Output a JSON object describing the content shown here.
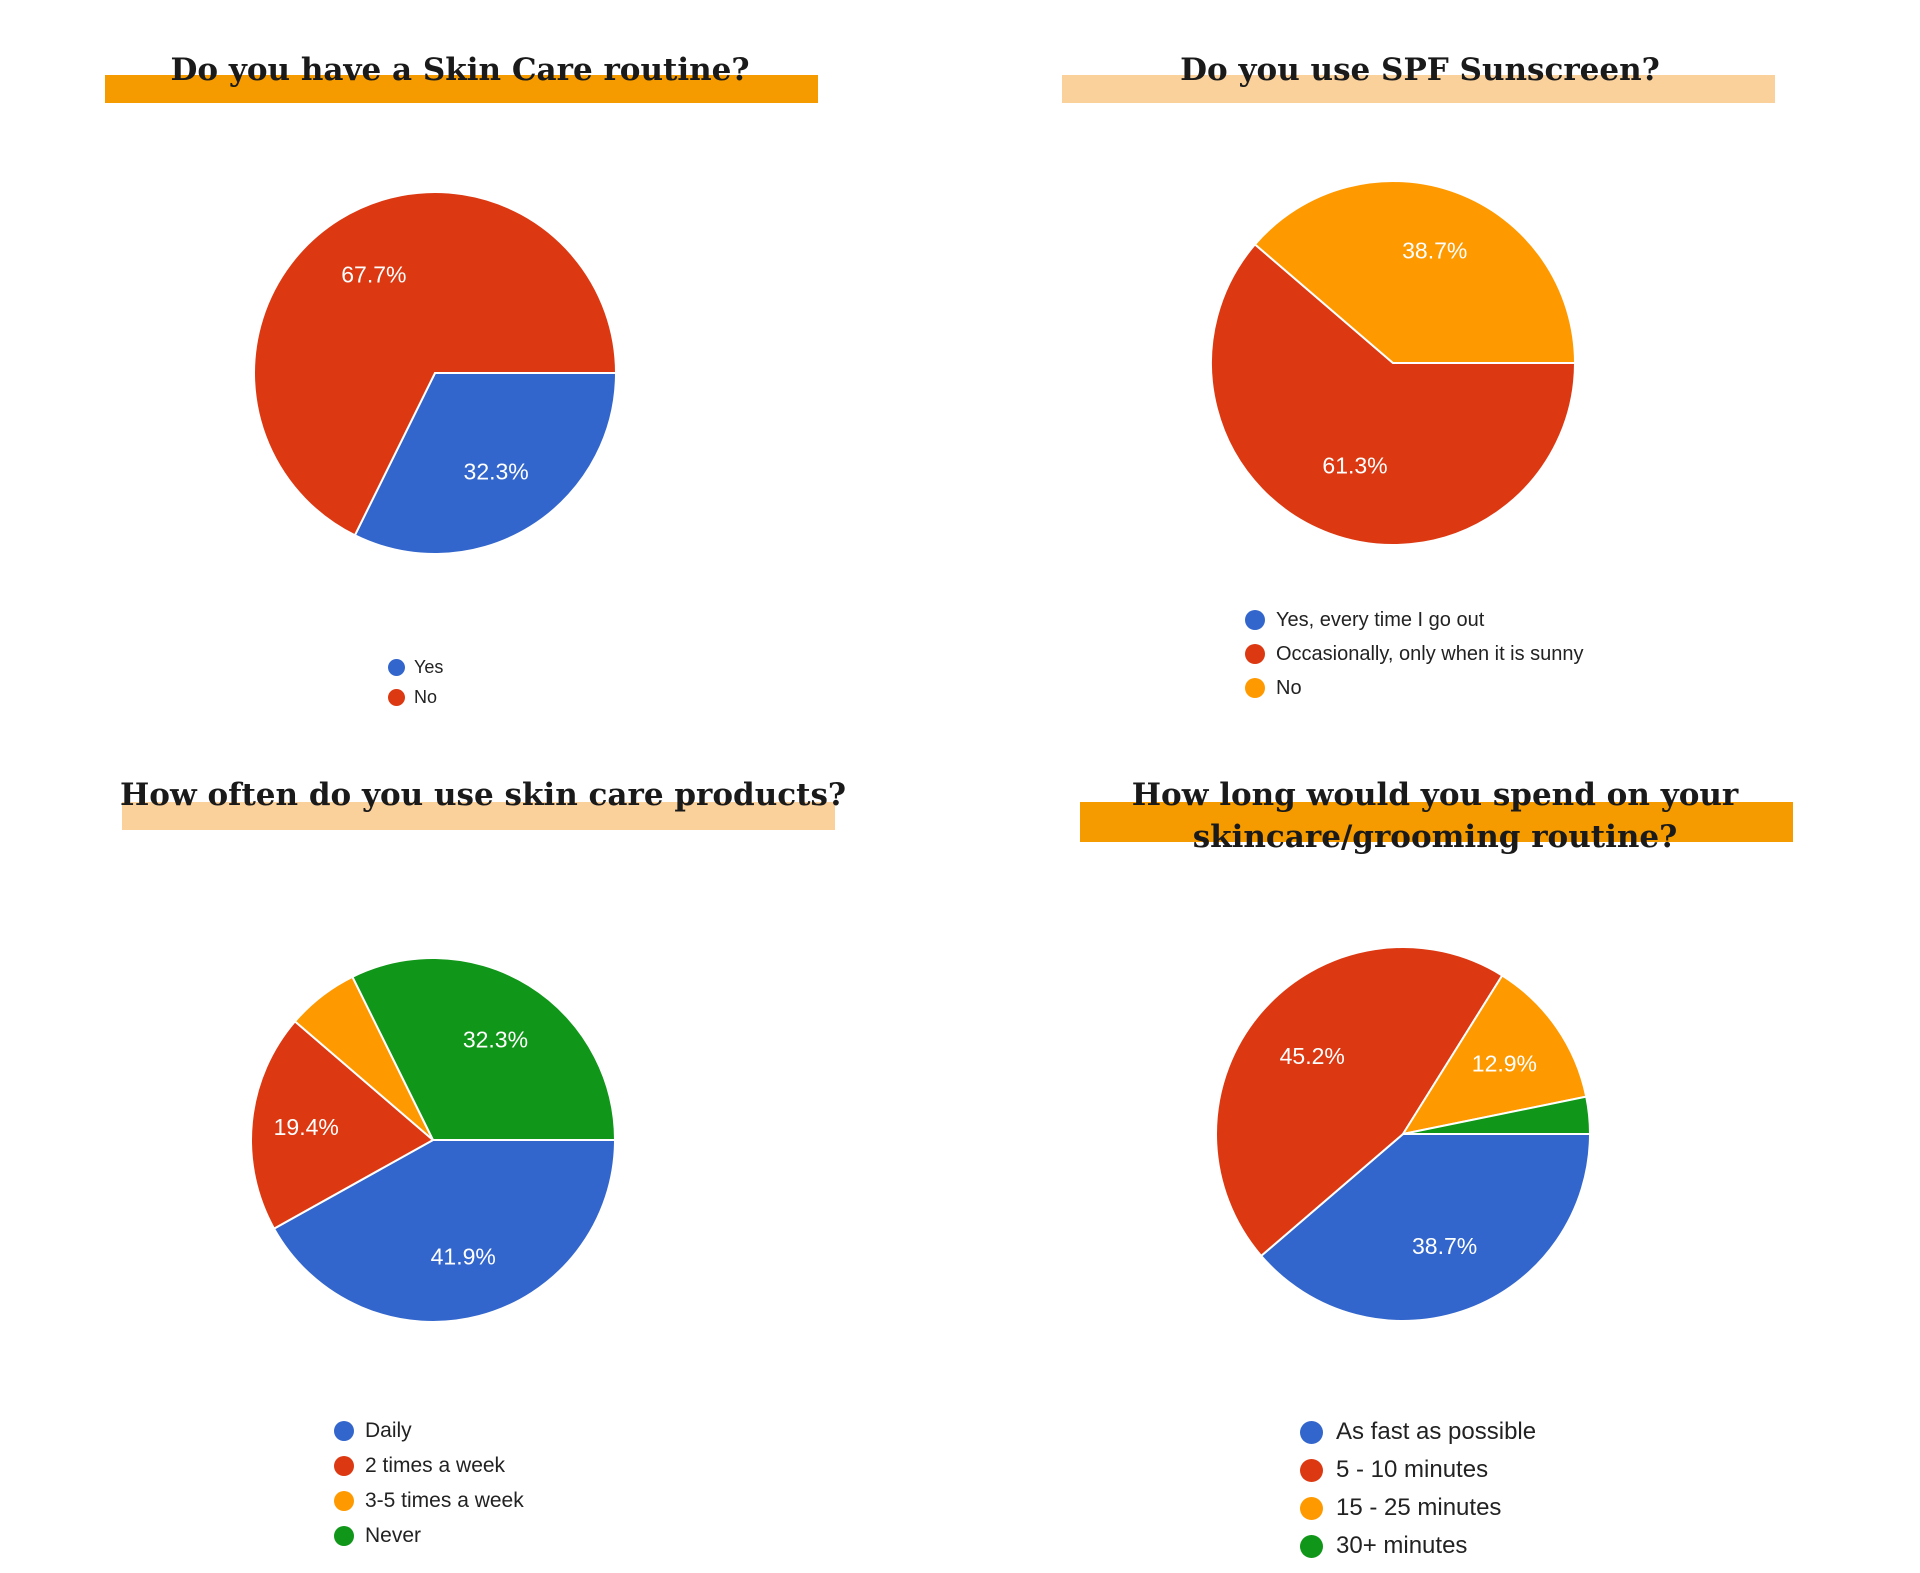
{
  "chart_data": [
    {
      "type": "pie",
      "title": "Do you have a Skin Care routine?",
      "title_band_color": "#f59b00",
      "categories": [
        "Yes",
        "No"
      ],
      "values": [
        32.3,
        67.7
      ],
      "labels": [
        "32.3%",
        "67.7%"
      ],
      "colors": [
        "#3366cc",
        "#dc3912"
      ],
      "legend_position": "bottom"
    },
    {
      "type": "pie",
      "title": "Do you use SPF Sunscreen?",
      "title_band_color": "#fad09b",
      "categories": [
        "Yes, every time I go out",
        "Occasionally, only when it is sunny",
        "No"
      ],
      "values": [
        0,
        61.3,
        38.7
      ],
      "labels": [
        "",
        "61.3%",
        "38.7%"
      ],
      "colors": [
        "#3366cc",
        "#dc3912",
        "#ff9900"
      ],
      "legend_position": "bottom"
    },
    {
      "type": "pie",
      "title": "How often do you use skin care products?",
      "title_band_color": "#fad09b",
      "categories": [
        "Daily",
        "2 times a week",
        "3-5 times a week",
        "Never"
      ],
      "values": [
        41.9,
        19.4,
        6.4,
        32.3
      ],
      "labels": [
        "41.9%",
        "19.4%",
        "",
        "32.3%"
      ],
      "colors": [
        "#3366cc",
        "#dc3912",
        "#ff9900",
        "#109618"
      ],
      "legend_position": "bottom"
    },
    {
      "type": "pie",
      "title": "How long would you spend on your skincare/grooming routine?",
      "title_lines": [
        "How long would you spend on your",
        "skincare/grooming routine?"
      ],
      "title_band_color": "#f59b00",
      "categories": [
        "As fast as possible",
        "5 - 10 minutes",
        "15 - 25 minutes",
        "30+ minutes"
      ],
      "values": [
        38.7,
        45.2,
        12.9,
        3.2
      ],
      "labels": [
        "38.7%",
        "45.2%",
        "12.9%",
        ""
      ],
      "colors": [
        "#3366cc",
        "#dc3912",
        "#ff9900",
        "#109618"
      ],
      "legend_position": "bottom"
    }
  ]
}
